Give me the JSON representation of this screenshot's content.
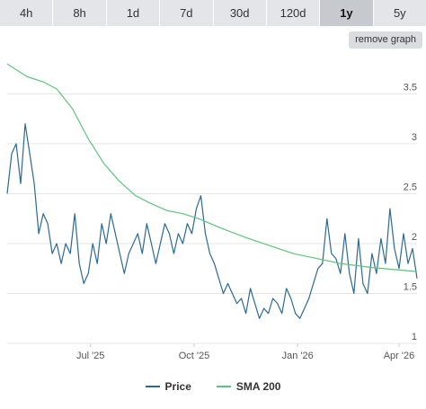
{
  "range_tabs": [
    {
      "label": "4h",
      "active": false
    },
    {
      "label": "8h",
      "active": false
    },
    {
      "label": "1d",
      "active": false
    },
    {
      "label": "7d",
      "active": false
    },
    {
      "label": "30d",
      "active": false
    },
    {
      "label": "120d",
      "active": false
    },
    {
      "label": "1y",
      "active": true
    },
    {
      "label": "5y",
      "active": false
    }
  ],
  "remove_graph_label": "remove graph",
  "chart_data": {
    "type": "line",
    "x_ticks": [
      "Jul '25",
      "Oct '25",
      "Jan '26",
      "Apr '26"
    ],
    "x_range": [
      "2025-04-18",
      "2026-04-17"
    ],
    "y_ticks": [
      "1",
      "1.5",
      "2",
      "2.5",
      "3",
      "3.5"
    ],
    "ylim": [
      1,
      3.9
    ],
    "grid": true,
    "legend_position": "bottom",
    "series": [
      {
        "name": "Price",
        "color": "#2b6a94",
        "points": [
          [
            "2025-04-18",
            2.5
          ],
          [
            "2025-04-22",
            2.9
          ],
          [
            "2025-04-26",
            3.0
          ],
          [
            "2025-04-30",
            2.6
          ],
          [
            "2025-05-04",
            3.2
          ],
          [
            "2025-05-08",
            2.9
          ],
          [
            "2025-05-12",
            2.6
          ],
          [
            "2025-05-16",
            2.1
          ],
          [
            "2025-05-20",
            2.3
          ],
          [
            "2025-05-24",
            2.2
          ],
          [
            "2025-05-28",
            1.9
          ],
          [
            "2025-06-01",
            2.0
          ],
          [
            "2025-06-05",
            1.8
          ],
          [
            "2025-06-09",
            2.0
          ],
          [
            "2025-06-13",
            1.9
          ],
          [
            "2025-06-17",
            2.3
          ],
          [
            "2025-06-21",
            1.8
          ],
          [
            "2025-06-25",
            1.6
          ],
          [
            "2025-06-29",
            1.7
          ],
          [
            "2025-07-03",
            2.0
          ],
          [
            "2025-07-07",
            1.8
          ],
          [
            "2025-07-11",
            2.2
          ],
          [
            "2025-07-15",
            2.0
          ],
          [
            "2025-07-19",
            2.3
          ],
          [
            "2025-07-23",
            2.1
          ],
          [
            "2025-07-27",
            1.9
          ],
          [
            "2025-07-31",
            1.7
          ],
          [
            "2025-08-04",
            1.9
          ],
          [
            "2025-08-08",
            2.0
          ],
          [
            "2025-08-12",
            2.1
          ],
          [
            "2025-08-16",
            1.9
          ],
          [
            "2025-08-20",
            2.2
          ],
          [
            "2025-08-24",
            2.0
          ],
          [
            "2025-08-28",
            1.8
          ],
          [
            "2025-09-01",
            2.0
          ],
          [
            "2025-09-05",
            2.2
          ],
          [
            "2025-09-09",
            2.1
          ],
          [
            "2025-09-13",
            1.9
          ],
          [
            "2025-09-17",
            2.1
          ],
          [
            "2025-09-21",
            2.0
          ],
          [
            "2025-09-25",
            2.2
          ],
          [
            "2025-09-29",
            2.1
          ],
          [
            "2025-10-03",
            2.35
          ],
          [
            "2025-10-07",
            2.48
          ],
          [
            "2025-10-11",
            2.1
          ],
          [
            "2025-10-15",
            1.9
          ],
          [
            "2025-10-19",
            1.8
          ],
          [
            "2025-10-23",
            1.65
          ],
          [
            "2025-10-27",
            1.5
          ],
          [
            "2025-10-31",
            1.6
          ],
          [
            "2025-11-04",
            1.5
          ],
          [
            "2025-11-08",
            1.4
          ],
          [
            "2025-11-12",
            1.45
          ],
          [
            "2025-11-16",
            1.3
          ],
          [
            "2025-11-20",
            1.55
          ],
          [
            "2025-11-24",
            1.4
          ],
          [
            "2025-11-28",
            1.25
          ],
          [
            "2025-12-02",
            1.35
          ],
          [
            "2025-12-06",
            1.3
          ],
          [
            "2025-12-10",
            1.45
          ],
          [
            "2025-12-14",
            1.4
          ],
          [
            "2025-12-18",
            1.3
          ],
          [
            "2025-12-22",
            1.55
          ],
          [
            "2025-12-26",
            1.45
          ],
          [
            "2025-12-30",
            1.3
          ],
          [
            "2026-01-03",
            1.25
          ],
          [
            "2026-01-07",
            1.35
          ],
          [
            "2026-01-11",
            1.45
          ],
          [
            "2026-01-15",
            1.6
          ],
          [
            "2026-01-19",
            1.75
          ],
          [
            "2026-01-23",
            1.8
          ],
          [
            "2026-01-27",
            2.25
          ],
          [
            "2026-01-31",
            1.9
          ],
          [
            "2026-02-04",
            1.85
          ],
          [
            "2026-02-08",
            1.7
          ],
          [
            "2026-02-12",
            2.1
          ],
          [
            "2026-02-16",
            1.7
          ],
          [
            "2026-02-20",
            1.5
          ],
          [
            "2026-02-24",
            2.05
          ],
          [
            "2026-02-28",
            1.6
          ],
          [
            "2026-03-04",
            1.5
          ],
          [
            "2026-03-08",
            1.9
          ],
          [
            "2026-03-12",
            1.7
          ],
          [
            "2026-03-16",
            2.05
          ],
          [
            "2026-03-20",
            1.8
          ],
          [
            "2026-03-24",
            2.35
          ],
          [
            "2026-03-28",
            1.95
          ],
          [
            "2026-04-01",
            1.75
          ],
          [
            "2026-04-05",
            2.1
          ],
          [
            "2026-04-09",
            1.8
          ],
          [
            "2026-04-13",
            1.95
          ],
          [
            "2026-04-17",
            1.65
          ]
        ]
      },
      {
        "name": "SMA 200",
        "color": "#5cc47c",
        "points": [
          [
            "2025-04-18",
            3.8
          ],
          [
            "2025-05-06",
            3.67
          ],
          [
            "2025-05-20",
            3.62
          ],
          [
            "2025-06-01",
            3.55
          ],
          [
            "2025-06-15",
            3.35
          ],
          [
            "2025-06-29",
            3.05
          ],
          [
            "2025-07-13",
            2.8
          ],
          [
            "2025-07-27",
            2.62
          ],
          [
            "2025-08-10",
            2.48
          ],
          [
            "2025-08-24",
            2.4
          ],
          [
            "2025-09-07",
            2.33
          ],
          [
            "2025-09-21",
            2.3
          ],
          [
            "2025-10-05",
            2.25
          ],
          [
            "2025-10-26",
            2.15
          ],
          [
            "2025-11-16",
            2.06
          ],
          [
            "2025-12-07",
            1.98
          ],
          [
            "2025-12-28",
            1.9
          ],
          [
            "2026-01-18",
            1.85
          ],
          [
            "2026-02-08",
            1.8
          ],
          [
            "2026-03-08",
            1.76
          ],
          [
            "2026-04-17",
            1.72
          ]
        ]
      }
    ]
  }
}
